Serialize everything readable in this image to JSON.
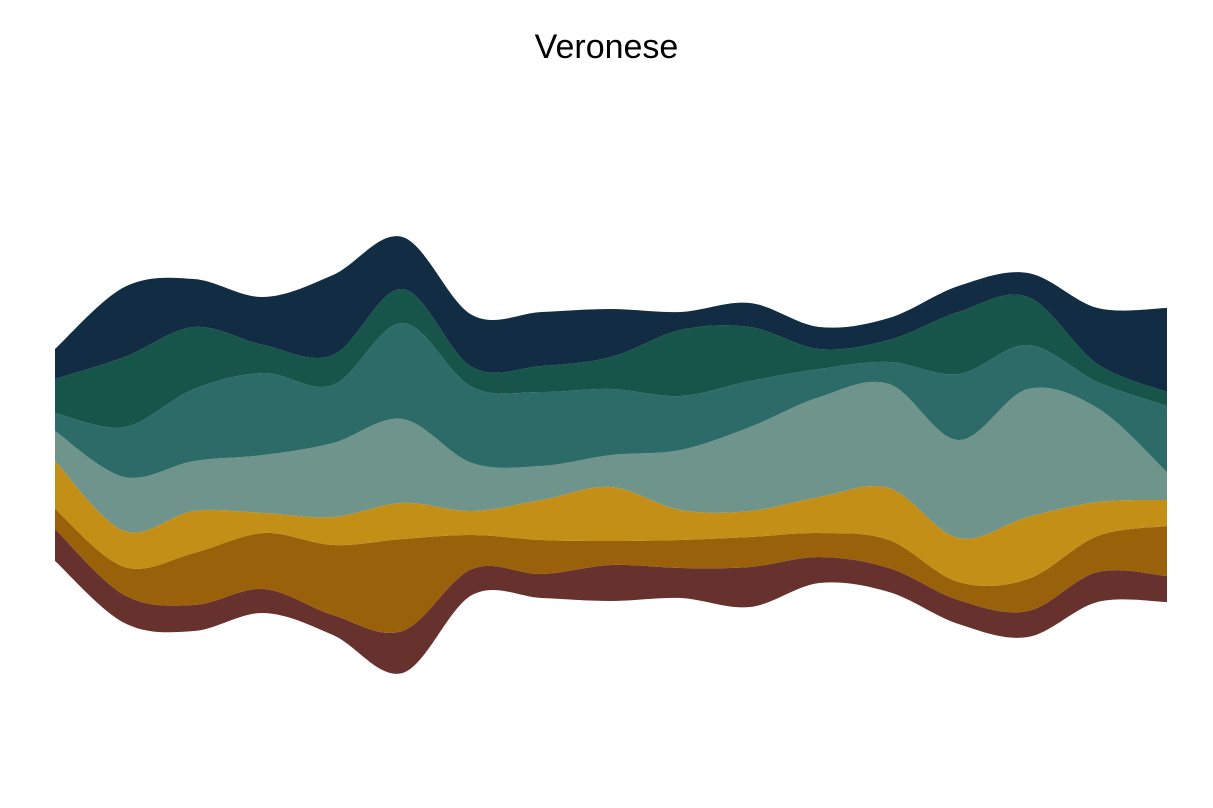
{
  "chart_data": {
    "type": "area",
    "subtype": "streamgraph",
    "title": "Veronese",
    "xlabel": "",
    "ylabel": "",
    "legend": "none",
    "grid": false,
    "axes_visible": false,
    "x": [
      0,
      1,
      2,
      3,
      4,
      5,
      6,
      7,
      8,
      9,
      10,
      11,
      12,
      13,
      14,
      15,
      16
    ],
    "series": [
      {
        "color": "#67322E",
        "values": [
          16,
          14,
          13,
          12,
          10,
          21,
          13,
          12,
          18,
          15,
          20,
          13,
          12,
          12,
          13,
          15,
          13
        ]
      },
      {
        "color": "#99610A",
        "values": [
          10,
          14,
          26,
          28,
          35,
          46,
          17,
          17,
          12,
          14,
          15,
          12,
          14,
          9,
          16,
          18,
          25
        ]
      },
      {
        "color": "#C38F16",
        "values": [
          24,
          18,
          21,
          10,
          14,
          18,
          12,
          20,
          27,
          15,
          13,
          18,
          26,
          22,
          31,
          17,
          13
        ]
      },
      {
        "color": "#6E948C",
        "values": [
          15,
          27,
          25,
          29,
          37,
          42,
          24,
          17,
          16,
          30,
          42,
          50,
          52,
          49,
          64,
          47,
          14
        ]
      },
      {
        "color": "#2C6B67",
        "values": [
          9,
          25,
          36,
          41,
          29,
          48,
          38,
          37,
          33,
          27,
          23,
          14,
          11,
          33,
          22,
          13,
          33
        ]
      },
      {
        "color": "#175449",
        "values": [
          17,
          35,
          31,
          14,
          15,
          17,
          10,
          13,
          16,
          33,
          27,
          10,
          11,
          31,
          24,
          9,
          7
        ]
      },
      {
        "color": "#122C43",
        "values": [
          15,
          35,
          24,
          24,
          40,
          26,
          26,
          27,
          24,
          9,
          12,
          11,
          11,
          13,
          12,
          28,
          42
        ]
      }
    ]
  }
}
